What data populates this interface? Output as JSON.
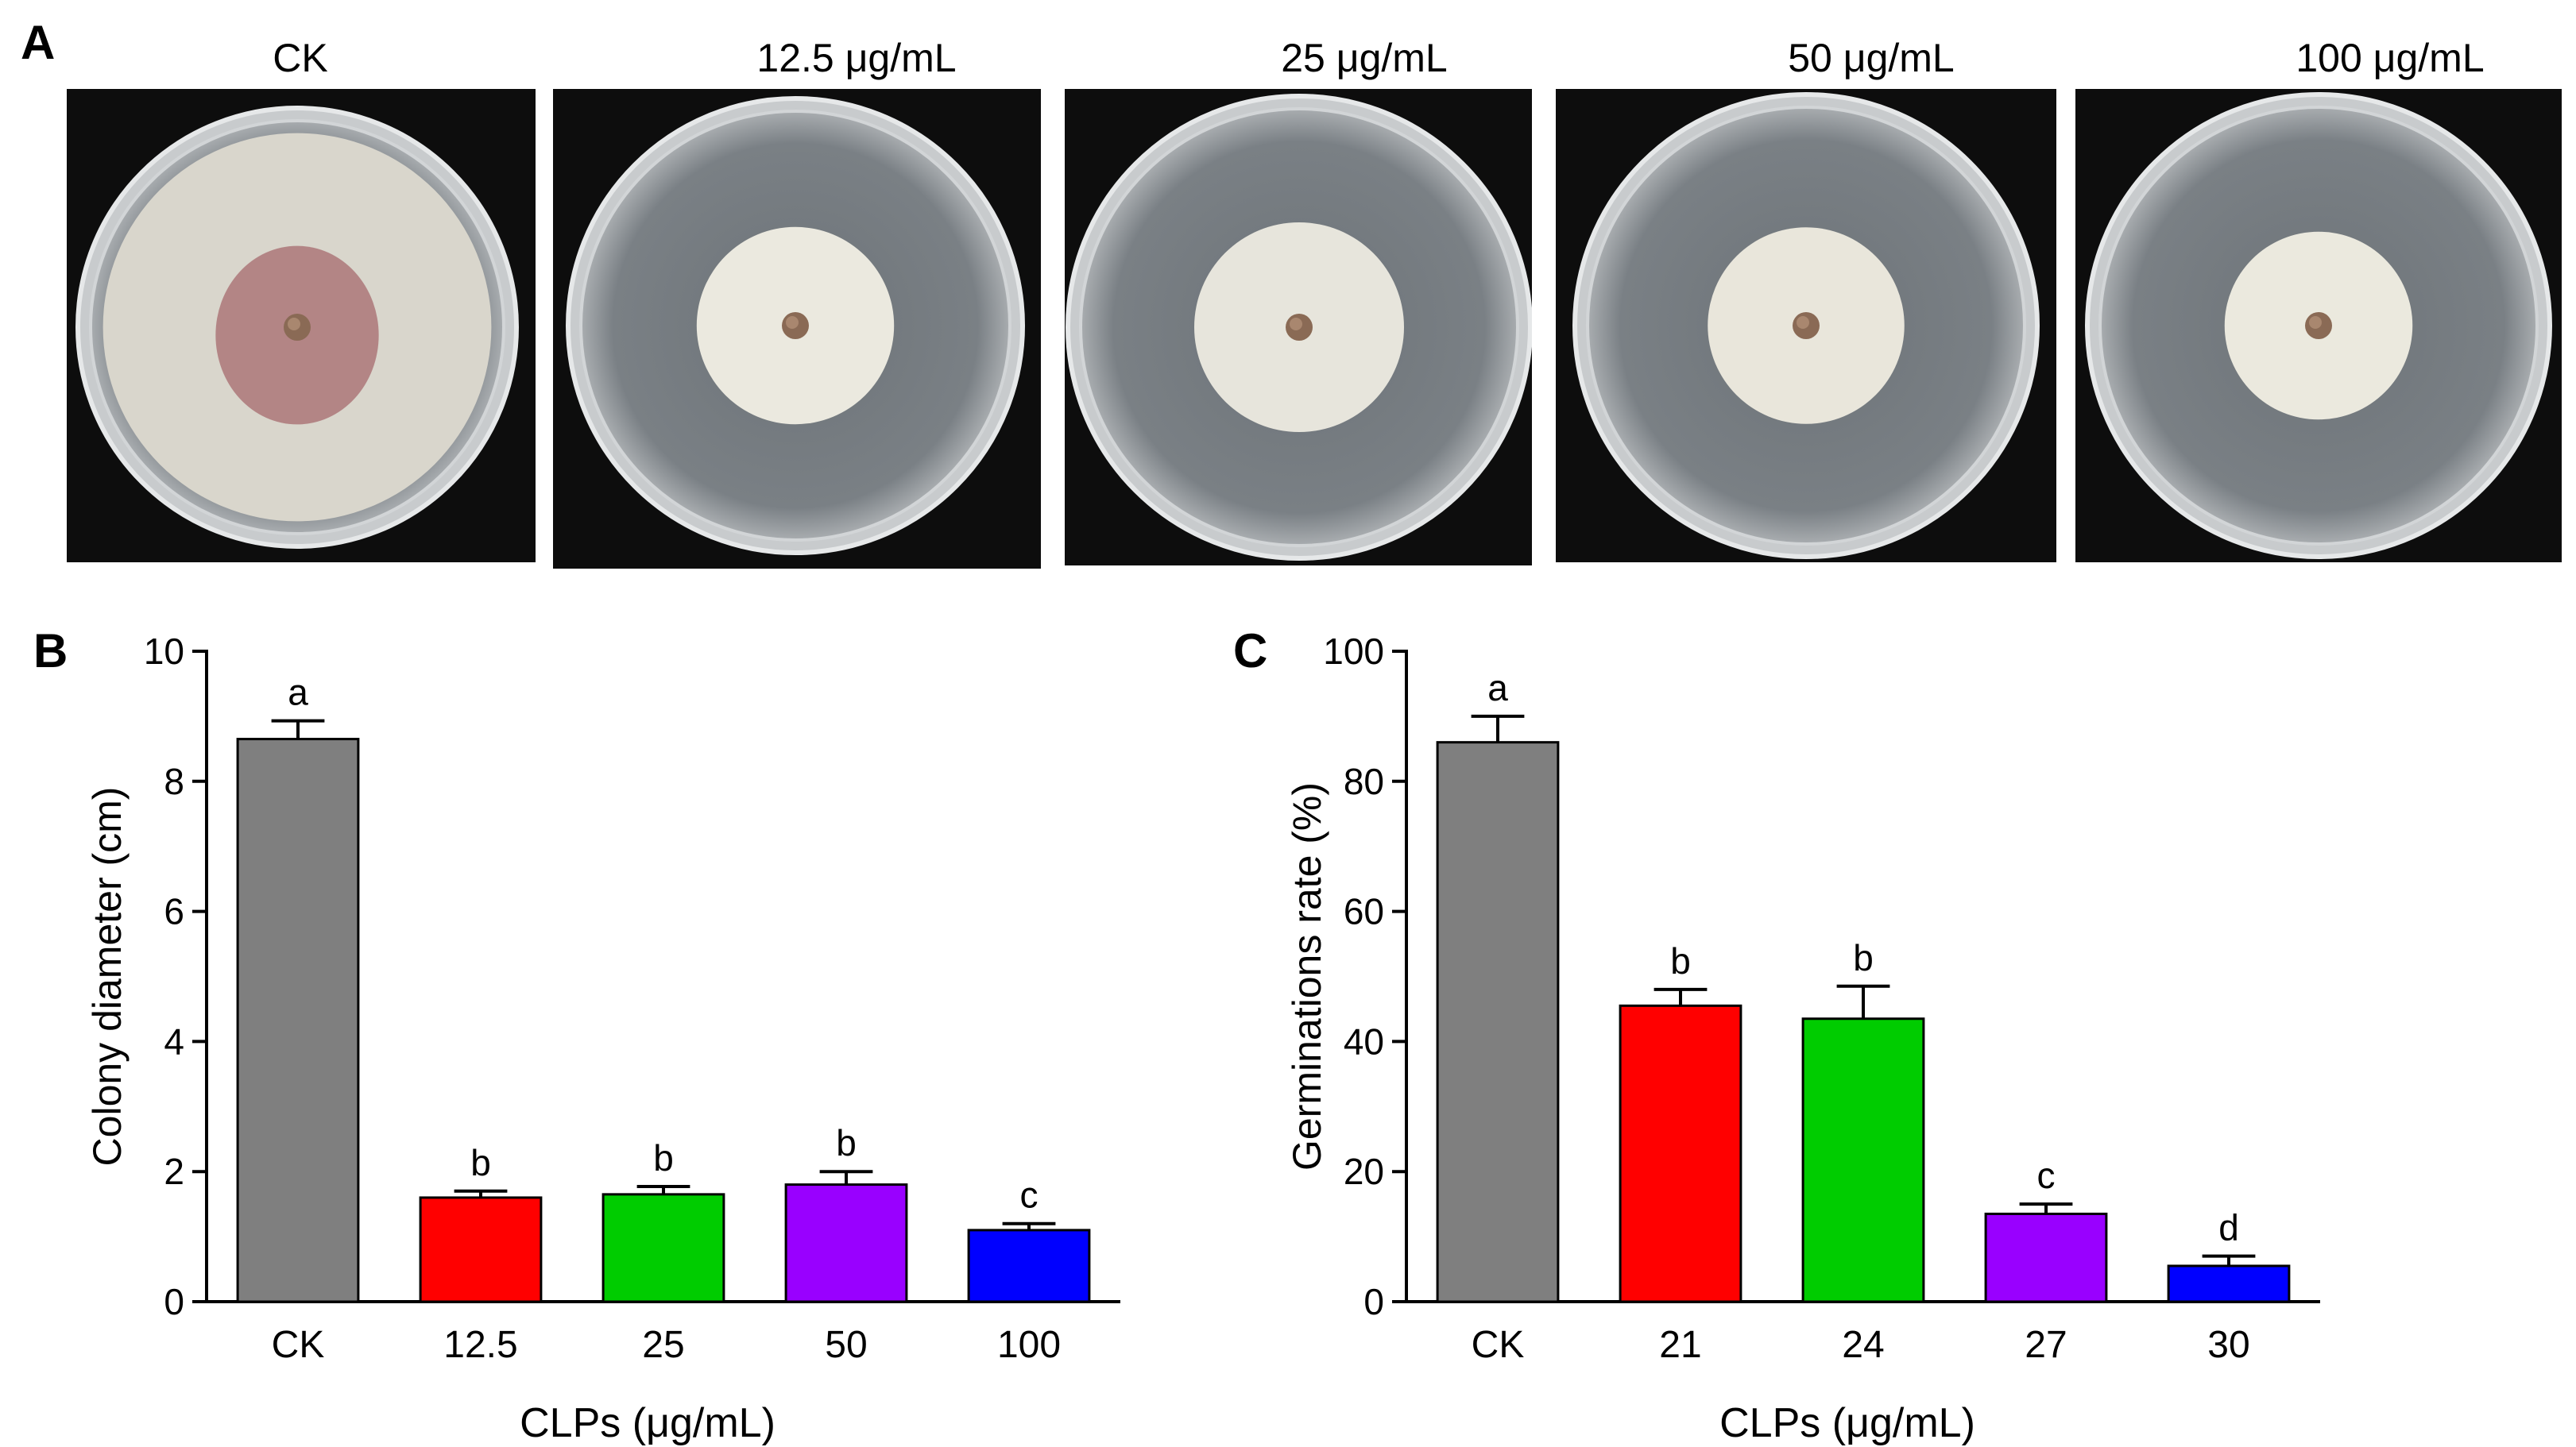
{
  "panel_a": {
    "letter": "A",
    "plates": [
      {
        "label": "CK",
        "colony_fraction": 0.94,
        "colony_color": "#d9d6cc",
        "center_stain": "#a56a6e"
      },
      {
        "label": "12.5 μg/mL",
        "colony_fraction": 0.46,
        "colony_color": "#ebe9df",
        "center_stain": ""
      },
      {
        "label": "25 μg/mL",
        "colony_fraction": 0.48,
        "colony_color": "#e7e5dc",
        "center_stain": ""
      },
      {
        "label": "50 μg/mL",
        "colony_fraction": 0.45,
        "colony_color": "#e9e6db",
        "center_stain": ""
      },
      {
        "label": "100 μg/mL",
        "colony_fraction": 0.43,
        "colony_color": "#ebe9de",
        "center_stain": ""
      }
    ]
  },
  "chart_data": [
    {
      "panel": "B",
      "type": "bar",
      "categories": [
        "CK",
        "12.5",
        "25",
        "50",
        "100"
      ],
      "values": [
        8.65,
        1.6,
        1.65,
        1.8,
        1.1
      ],
      "errors": [
        0.28,
        0.1,
        0.12,
        0.2,
        0.1
      ],
      "significance": [
        "a",
        "b",
        "b",
        "b",
        "c"
      ],
      "colors": [
        "#7f7f7f",
        "#ff0000",
        "#00cc00",
        "#9900ff",
        "#0000ff"
      ],
      "title": "",
      "xlabel": "CLPs (μg/mL)",
      "ylabel": "Colony diameter (cm)",
      "ylim": [
        0,
        10
      ],
      "yticks": [
        0,
        2,
        4,
        6,
        8,
        10
      ]
    },
    {
      "panel": "C",
      "type": "bar",
      "categories": [
        "CK",
        "21",
        "24",
        "27",
        "30"
      ],
      "values": [
        86,
        45.5,
        43.5,
        13.5,
        5.5
      ],
      "errors": [
        4,
        2.5,
        5,
        1.5,
        1.5
      ],
      "significance": [
        "a",
        "b",
        "b",
        "c",
        "d"
      ],
      "colors": [
        "#7f7f7f",
        "#ff0000",
        "#00cc00",
        "#9900ff",
        "#0000ff"
      ],
      "title": "",
      "xlabel": "CLPs (μg/mL)",
      "ylabel": "Germinations rate (%)",
      "ylim": [
        0,
        100
      ],
      "yticks": [
        0,
        20,
        40,
        60,
        80,
        100
      ]
    }
  ]
}
